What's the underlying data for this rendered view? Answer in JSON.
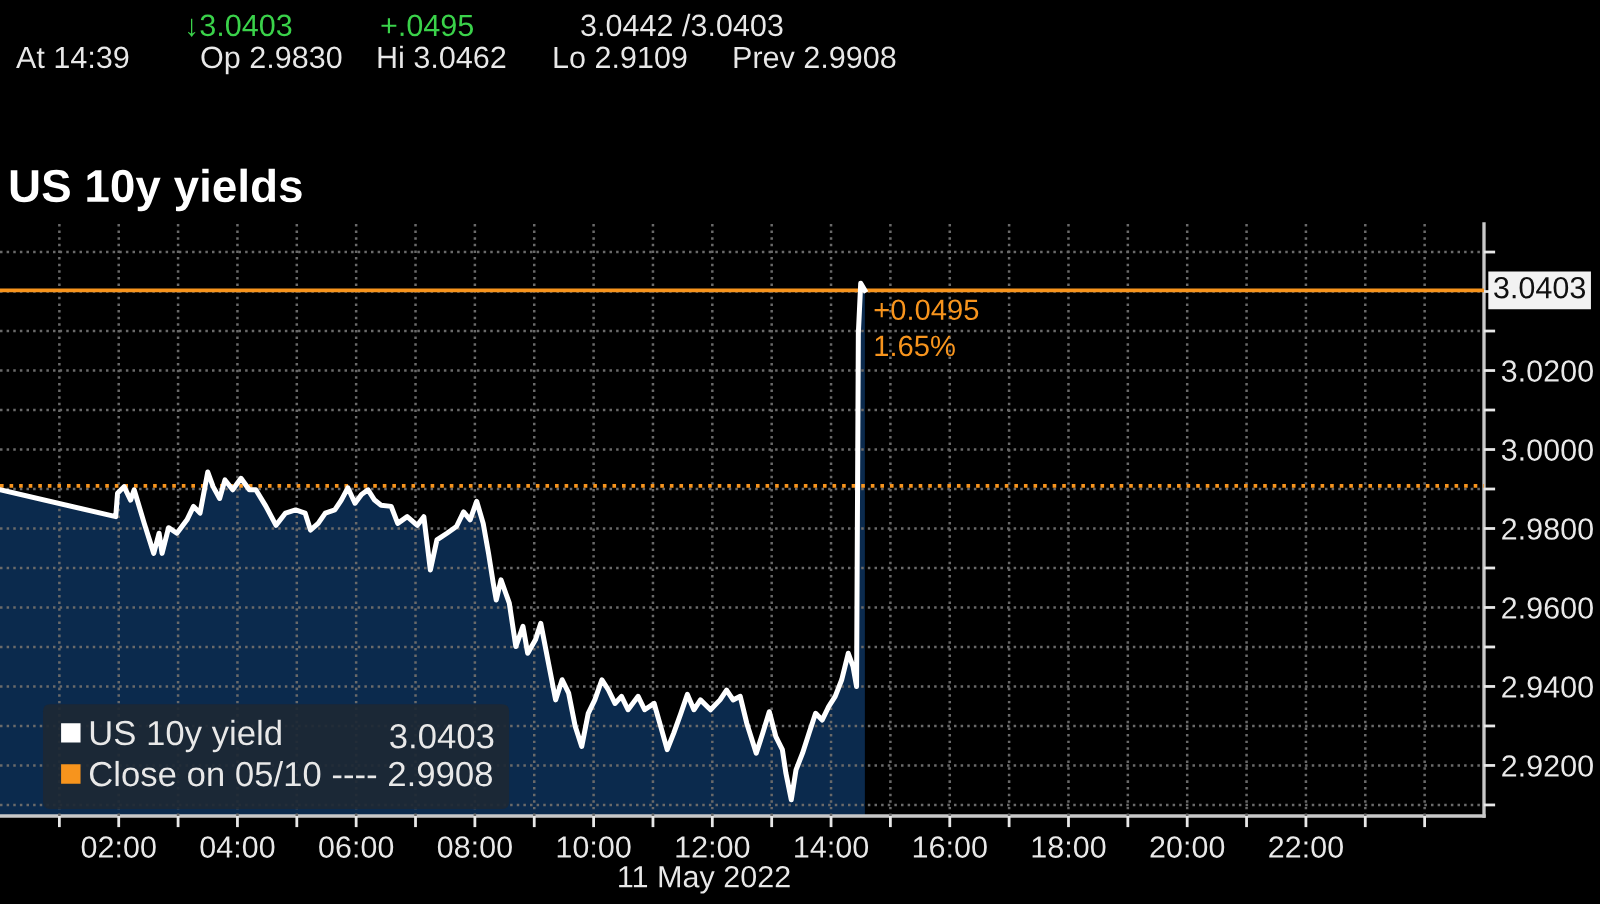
{
  "chart_data": {
    "type": "area",
    "title": "US 10y yields",
    "xlabel": "11 May 2022",
    "x": [
      0,
      1.95,
      1.98,
      2.09,
      2.2,
      2.26,
      2.43,
      2.59,
      2.68,
      2.73,
      2.84,
      2.98,
      3.15,
      3.26,
      3.37,
      3.5,
      3.59,
      3.7,
      3.79,
      3.92,
      4.06,
      4.2,
      4.31,
      4.48,
      4.65,
      4.81,
      4.98,
      5.14,
      5.23,
      5.36,
      5.48,
      5.64,
      5.75,
      5.86,
      5.98,
      6.09,
      6.2,
      6.31,
      6.42,
      6.59,
      6.7,
      6.86,
      7.03,
      7.14,
      7.25,
      7.36,
      7.53,
      7.69,
      7.81,
      7.92,
      8.03,
      8.14,
      8.23,
      8.31,
      8.36,
      8.44,
      8.58,
      8.69,
      8.81,
      8.89,
      9.02,
      9.11,
      9.25,
      9.36,
      9.47,
      9.58,
      9.69,
      9.8,
      9.91,
      10.02,
      10.14,
      10.25,
      10.36,
      10.47,
      10.58,
      10.75,
      10.86,
      11.02,
      11.13,
      11.24,
      11.35,
      11.47,
      11.58,
      11.69,
      11.8,
      11.97,
      12.13,
      12.24,
      12.35,
      12.47,
      12.58,
      12.74,
      12.85,
      12.96,
      13.07,
      13.18,
      13.24,
      13.33,
      13.41,
      13.52,
      13.63,
      13.74,
      13.85,
      13.96,
      14.07,
      14.18,
      14.29,
      14.37,
      14.43,
      14.46,
      14.5,
      14.57
    ],
    "series": [
      {
        "name": "US 10y yield",
        "color": "#ffffff",
        "values": [
          2.9898,
          2.983,
          2.9889,
          2.9906,
          2.9872,
          2.9898,
          2.9813,
          2.9737,
          2.9788,
          2.9737,
          2.9802,
          2.9788,
          2.9822,
          2.9856,
          2.9839,
          2.9943,
          2.9906,
          2.9876,
          2.9923,
          2.9898,
          2.9927,
          2.9898,
          2.9898,
          2.9856,
          2.9808,
          2.9839,
          2.9847,
          2.9839,
          2.9796,
          2.9813,
          2.9839,
          2.9847,
          2.9872,
          2.9903,
          2.9864,
          2.9886,
          2.9898,
          2.9872,
          2.9859,
          2.9856,
          2.9813,
          2.983,
          2.9808,
          2.983,
          2.9695,
          2.9771,
          2.9788,
          2.9805,
          2.9842,
          2.9822,
          2.9869,
          2.9813,
          2.9737,
          2.9661,
          2.9619,
          2.967,
          2.9611,
          2.9501,
          2.9552,
          2.9484,
          2.9518,
          2.956,
          2.9451,
          2.9366,
          2.9417,
          2.9383,
          2.9299,
          2.9248,
          2.9332,
          2.9366,
          2.9417,
          2.9391,
          2.9357,
          2.9375,
          2.9341,
          2.9375,
          2.9341,
          2.9357,
          2.9299,
          2.924,
          2.9282,
          2.9332,
          2.938,
          2.9341,
          2.9366,
          2.9341,
          2.9366,
          2.9391,
          2.9366,
          2.9375,
          2.9307,
          2.9231,
          2.9282,
          2.9336,
          2.9273,
          2.924,
          2.918,
          2.9113,
          2.9189,
          2.9231,
          2.9282,
          2.9332,
          2.9315,
          2.9349,
          2.9375,
          2.9417,
          2.9484,
          2.9451,
          2.94,
          3.0294,
          3.0421,
          3.0403
        ]
      }
    ],
    "xlim": [
      0,
      25
    ],
    "xticks": [
      {
        "value": 1,
        "label": null
      },
      {
        "value": 2,
        "label": "02:00"
      },
      {
        "value": 3,
        "label": null
      },
      {
        "value": 4,
        "label": "04:00"
      },
      {
        "value": 5,
        "label": null
      },
      {
        "value": 6,
        "label": "06:00"
      },
      {
        "value": 7,
        "label": null
      },
      {
        "value": 8,
        "label": "08:00"
      },
      {
        "value": 9,
        "label": null
      },
      {
        "value": 10,
        "label": "10:00"
      },
      {
        "value": 11,
        "label": null
      },
      {
        "value": 12,
        "label": "12:00"
      },
      {
        "value": 13,
        "label": null
      },
      {
        "value": 14,
        "label": "14:00"
      },
      {
        "value": 15,
        "label": null
      },
      {
        "value": 16,
        "label": "16:00"
      },
      {
        "value": 17,
        "label": null
      },
      {
        "value": 18,
        "label": "18:00"
      },
      {
        "value": 19,
        "label": null
      },
      {
        "value": 20,
        "label": "20:00"
      },
      {
        "value": 21,
        "label": null
      },
      {
        "value": 22,
        "label": "22:00"
      },
      {
        "value": 23,
        "label": null
      },
      {
        "value": 24,
        "label": null
      }
    ],
    "ylim": [
      2.9072,
      3.0571
    ],
    "yticks": [
      {
        "value": 2.91,
        "label": null
      },
      {
        "value": 2.92,
        "label": "2.9200"
      },
      {
        "value": 2.93,
        "label": null
      },
      {
        "value": 2.94,
        "label": "2.9400"
      },
      {
        "value": 2.95,
        "label": null
      },
      {
        "value": 2.96,
        "label": "2.9600"
      },
      {
        "value": 2.97,
        "label": null
      },
      {
        "value": 2.98,
        "label": "2.9800"
      },
      {
        "value": 2.99,
        "label": null
      },
      {
        "value": 3.0,
        "label": "3.0000"
      },
      {
        "value": 3.01,
        "label": null
      },
      {
        "value": 3.02,
        "label": "3.0200"
      },
      {
        "value": 3.03,
        "label": null
      },
      {
        "value": 3.04,
        "label": null
      },
      {
        "value": 3.05,
        "label": null
      }
    ],
    "grid": true,
    "line_style": "solid",
    "legend": "bottom left",
    "ref_lines": [
      {
        "axis": "y",
        "value": 2.9908,
        "label": "Close on 05/10 ---- 2.9908",
        "color": "#f7941d",
        "line_style": "dotted"
      },
      {
        "axis": "y",
        "value": 3.0403,
        "label": "3.0403",
        "color": "#f7941d",
        "line_style": "solid"
      }
    ],
    "annotations": [
      "↓3.0403",
      "+.0495",
      "3.0442 /3.0403",
      "At 14:39",
      "Op 2.9830",
      "Hi 3.0462",
      "Lo 2.9109",
      "Prev 2.9908",
      {
        "text": "+0.0495",
        "x": 14.57,
        "y": 3.0403
      },
      {
        "text": "1.65%",
        "x": 14.57,
        "y": 3.0403
      }
    ]
  }
}
